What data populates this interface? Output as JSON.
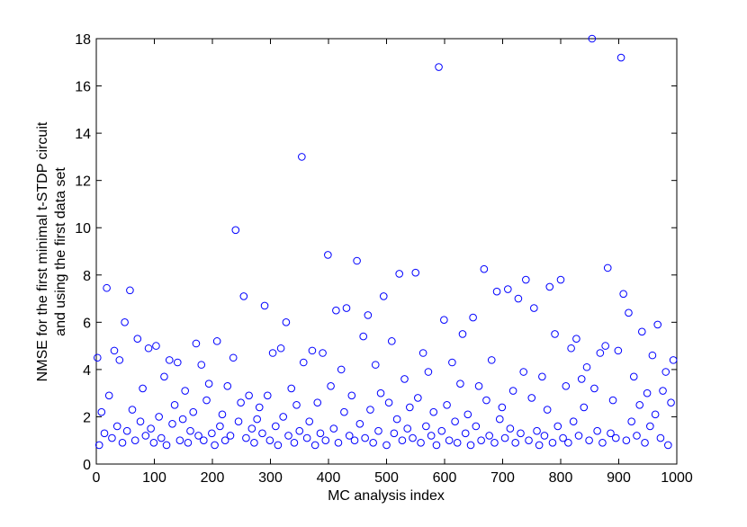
{
  "chart_data": {
    "type": "scatter",
    "xlabel": "MC analysis index",
    "ylabel": [
      "NMSE for the first minimal t-STDP circuit",
      "and using the first data set"
    ],
    "xlim": [
      0,
      1000
    ],
    "xticks": [
      0,
      100,
      200,
      300,
      400,
      500,
      600,
      700,
      800,
      900,
      1000
    ],
    "ylim": [
      0,
      18
    ],
    "yticks": [
      0,
      2,
      4,
      6,
      8,
      10,
      12,
      14,
      16,
      18
    ],
    "grid": false,
    "series": [
      {
        "color": "#0000ff",
        "x": [
          2,
          5,
          9,
          14,
          18,
          22,
          27,
          31,
          36,
          40,
          45,
          49,
          53,
          58,
          62,
          67,
          71,
          76,
          80,
          85,
          90,
          94,
          99,
          103,
          108,
          112,
          117,
          121,
          126,
          131,
          135,
          140,
          144,
          149,
          153,
          158,
          162,
          167,
          172,
          176,
          181,
          185,
          190,
          194,
          199,
          204,
          208,
          213,
          217,
          222,
          226,
          231,
          236,
          240,
          245,
          249,
          254,
          258,
          263,
          268,
          272,
          277,
          281,
          286,
          290,
          295,
          299,
          304,
          309,
          313,
          318,
          322,
          327,
          331,
          336,
          341,
          345,
          350,
          354,
          357,
          363,
          367,
          372,
          377,
          381,
          386,
          390,
          395,
          399,
          404,
          409,
          413,
          417,
          422,
          427,
          431,
          436,
          440,
          445,
          449,
          454,
          460,
          463,
          468,
          472,
          477,
          481,
          486,
          490,
          495,
          500,
          504,
          509,
          513,
          518,
          522,
          527,
          531,
          536,
          540,
          545,
          550,
          554,
          559,
          563,
          568,
          572,
          577,
          581,
          586,
          590,
          595,
          599,
          604,
          608,
          613,
          618,
          622,
          627,
          631,
          636,
          640,
          645,
          649,
          654,
          659,
          663,
          668,
          672,
          677,
          681,
          686,
          690,
          695,
          699,
          704,
          709,
          713,
          718,
          722,
          727,
          731,
          736,
          740,
          745,
          750,
          754,
          759,
          763,
          768,
          772,
          777,
          781,
          786,
          790,
          795,
          800,
          804,
          809,
          813,
          818,
          822,
          827,
          831,
          836,
          840,
          845,
          849,
          854,
          858,
          863,
          868,
          872,
          877,
          881,
          886,
          890,
          895,
          899,
          904,
          908,
          913,
          917,
          922,
          926,
          931,
          936,
          940,
          945,
          949,
          954,
          958,
          963,
          967,
          972,
          976,
          981,
          985,
          990,
          994
        ],
        "values": [
          4.5,
          0.8,
          2.2,
          1.3,
          7.45,
          2.9,
          1.1,
          4.8,
          1.6,
          4.4,
          0.9,
          6.0,
          1.4,
          7.35,
          2.3,
          1.0,
          5.3,
          1.8,
          3.2,
          1.2,
          4.9,
          1.5,
          0.9,
          5.0,
          2.0,
          1.1,
          3.7,
          0.8,
          4.4,
          1.7,
          2.5,
          4.3,
          1.0,
          1.9,
          3.1,
          0.9,
          1.4,
          2.2,
          5.1,
          1.2,
          4.2,
          1.0,
          2.7,
          3.4,
          1.3,
          0.8,
          5.2,
          1.6,
          2.1,
          1.0,
          3.3,
          1.2,
          4.5,
          9.9,
          1.8,
          2.6,
          7.1,
          1.1,
          2.9,
          1.5,
          0.9,
          1.9,
          2.4,
          1.3,
          6.7,
          2.9,
          1.0,
          4.7,
          1.6,
          0.8,
          4.9,
          2.0,
          6.0,
          1.2,
          3.2,
          0.9,
          2.5,
          1.4,
          13.0,
          4.3,
          1.1,
          1.8,
          4.8,
          0.8,
          2.6,
          1.3,
          4.7,
          1.0,
          8.85,
          3.3,
          1.5,
          6.5,
          0.9,
          4.0,
          2.2,
          6.6,
          1.2,
          2.9,
          1.0,
          8.6,
          1.7,
          5.4,
          1.1,
          6.3,
          2.3,
          0.9,
          4.2,
          1.4,
          3.0,
          7.1,
          0.8,
          2.6,
          5.2,
          1.3,
          1.9,
          8.05,
          1.0,
          3.6,
          1.5,
          2.4,
          1.1,
          8.1,
          2.8,
          0.9,
          4.7,
          1.6,
          3.9,
          1.2,
          2.2,
          0.8,
          16.8,
          1.4,
          6.1,
          2.5,
          1.0,
          4.3,
          1.8,
          0.9,
          3.4,
          5.5,
          1.3,
          2.1,
          0.8,
          6.2,
          1.6,
          3.3,
          1.0,
          8.25,
          2.7,
          1.2,
          4.4,
          0.9,
          7.3,
          1.9,
          2.4,
          1.1,
          7.4,
          1.5,
          3.1,
          0.9,
          7.0,
          1.3,
          3.9,
          7.8,
          1.0,
          2.8,
          6.6,
          1.4,
          0.8,
          3.7,
          1.2,
          2.3,
          7.5,
          0.9,
          5.5,
          1.6,
          7.8,
          1.1,
          3.3,
          0.9,
          4.9,
          1.8,
          5.3,
          1.2,
          3.6,
          2.4,
          4.1,
          1.0,
          18.0,
          3.2,
          1.4,
          4.7,
          0.9,
          5.0,
          8.3,
          1.3,
          2.7,
          1.1,
          4.8,
          17.2,
          7.2,
          1.0,
          6.4,
          1.8,
          3.7,
          1.2,
          2.5,
          5.6,
          0.9,
          3.0,
          1.6,
          4.6,
          2.1,
          5.9,
          1.1,
          3.1,
          3.9,
          0.8,
          2.6,
          4.4
        ]
      }
    ]
  }
}
